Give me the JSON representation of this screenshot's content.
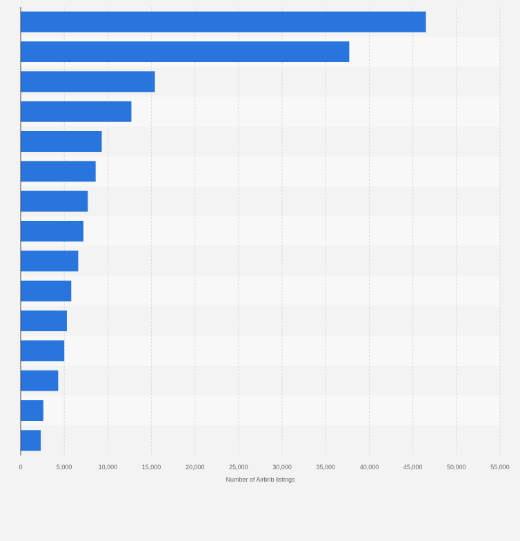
{
  "chart_data": {
    "type": "bar",
    "orientation": "horizontal",
    "title": "",
    "categories": [
      "",
      "",
      "",
      "",
      "",
      "",
      "",
      "",
      "",
      "",
      "",
      "",
      "",
      "",
      ""
    ],
    "values": [
      46500,
      37700,
      15400,
      12700,
      9300,
      8600,
      7700,
      7200,
      6600,
      5800,
      5300,
      5000,
      4300,
      2600,
      2300
    ],
    "xlabel": "Number of Airbnb listings",
    "ylabel": "",
    "xlim": [
      0,
      55000
    ],
    "xticks": [
      0,
      5000,
      10000,
      15000,
      20000,
      25000,
      30000,
      35000,
      40000,
      45000,
      50000,
      55000
    ],
    "xtick_labels": [
      "0",
      "5,000",
      "10,000",
      "15,000",
      "20,000",
      "25,000",
      "30,000",
      "35,000",
      "40,000",
      "45,000",
      "50,000",
      "55,000"
    ],
    "grid": true,
    "colors": {
      "bar": "#2876dd",
      "band_dark": "#f3f3f3",
      "band_light": "#f8f8f8",
      "grid": "#d9d9d9",
      "axis": "#444444",
      "tick_text": "#666666"
    }
  }
}
